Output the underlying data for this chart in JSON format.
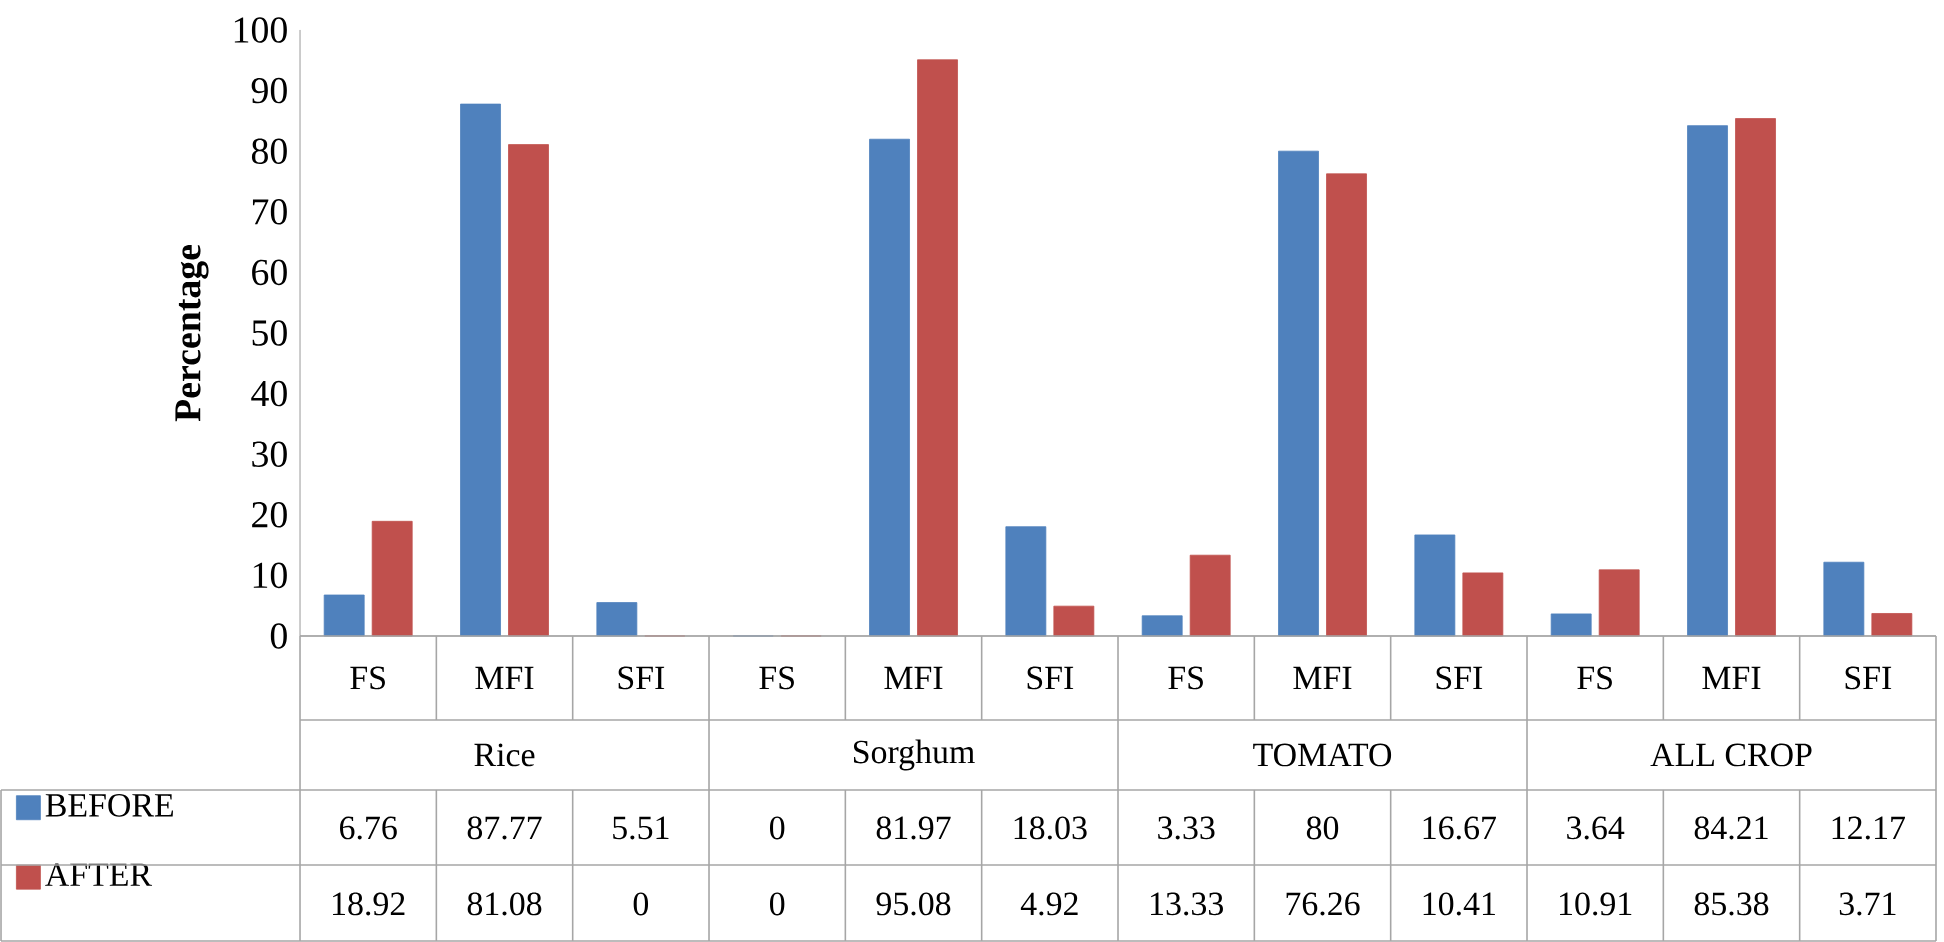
{
  "chart_data": {
    "type": "bar",
    "ylabel": "Percentage",
    "categories": [
      "FS",
      "MFI",
      "SFI",
      "FS",
      "MFI",
      "SFI",
      "FS",
      "MFI",
      "SFI",
      "FS",
      "MFI",
      "SFI"
    ],
    "annotations": [
      "Rice",
      "Sorghum",
      "TOMATO",
      "ALL CROP"
    ],
    "series": [
      {
        "name": "BEFORE",
        "color": "#4f81bd",
        "values": [
          6.76,
          87.77,
          5.51,
          0,
          81.97,
          18.03,
          3.33,
          80,
          16.67,
          3.64,
          84.21,
          12.17
        ]
      },
      {
        "name": "AFTER",
        "color": "#c0504d",
        "values": [
          18.92,
          81.08,
          0,
          0,
          95.08,
          4.92,
          13.33,
          76.26,
          10.41,
          10.91,
          85.38,
          3.71
        ]
      }
    ],
    "ylim": [
      0,
      100
    ],
    "yticks": [
      0,
      10,
      20,
      30,
      40,
      50,
      60,
      70,
      80,
      90,
      100
    ],
    "data_labels": true,
    "legend": "bottom left",
    "grid": false
  }
}
